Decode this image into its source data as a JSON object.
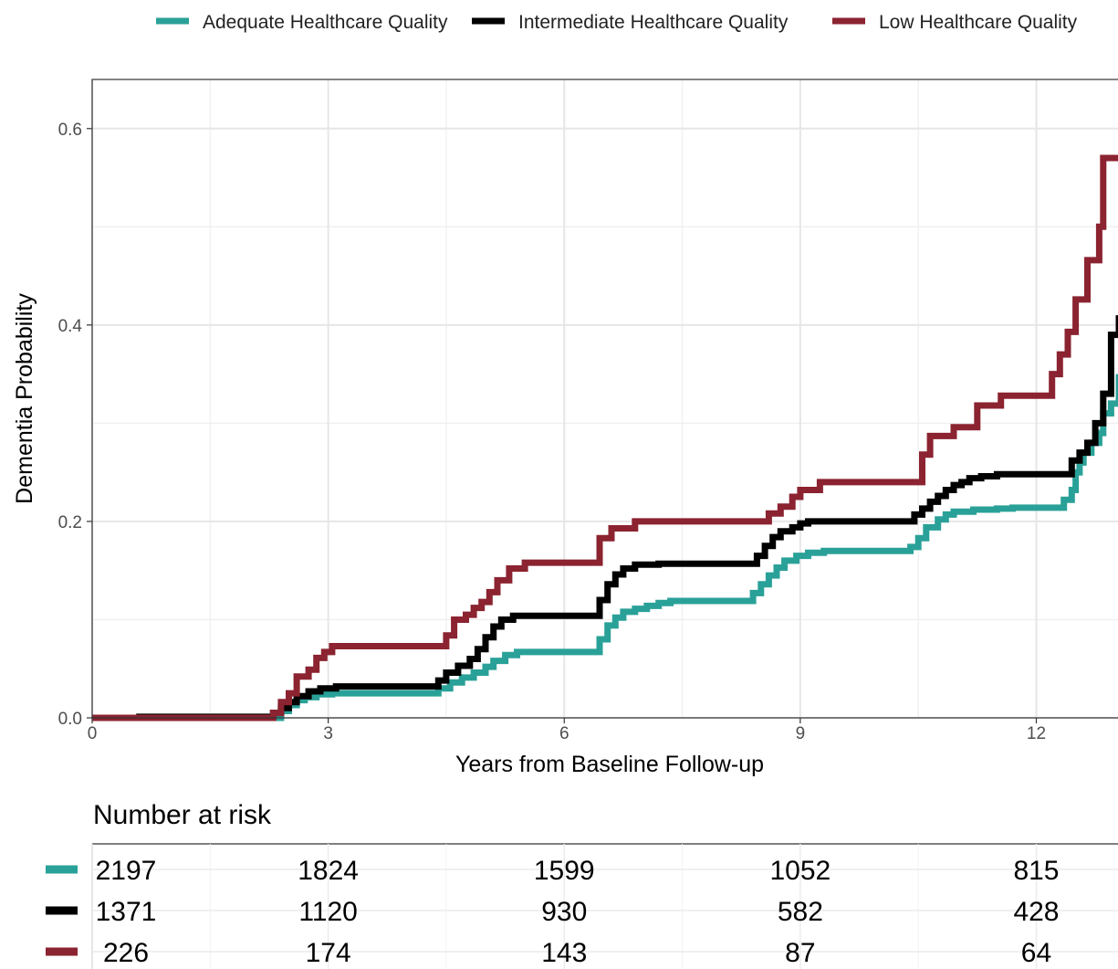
{
  "chart_data": {
    "type": "line",
    "step": true,
    "xlabel": "Years from Baseline Follow-up",
    "ylabel": "Dementia Probability",
    "xlim": [
      0,
      13.05
    ],
    "ylim": [
      0,
      0.65
    ],
    "x_ticks": [
      "0",
      "3",
      "6",
      "9",
      "12"
    ],
    "x_tick_values": [
      0,
      3,
      6,
      9,
      12
    ],
    "y_ticks": [
      "0.0",
      "0.2",
      "0.4",
      "0.6"
    ],
    "y_tick_values": [
      0,
      0.2,
      0.4,
      0.6
    ],
    "grid": true,
    "legend_position": "top",
    "series": [
      {
        "name": "Adequate Healthcare Quality",
        "color": "#2aa198",
        "points": [
          [
            0,
            0
          ],
          [
            0.6,
            0
          ],
          [
            2.25,
            0
          ],
          [
            2.4,
            0.007
          ],
          [
            2.5,
            0.013
          ],
          [
            2.6,
            0.018
          ],
          [
            2.7,
            0.021
          ],
          [
            2.85,
            0.024
          ],
          [
            3.05,
            0.025
          ],
          [
            4.3,
            0.025
          ],
          [
            4.4,
            0.03
          ],
          [
            4.55,
            0.036
          ],
          [
            4.7,
            0.041
          ],
          [
            4.85,
            0.046
          ],
          [
            5.0,
            0.052
          ],
          [
            5.1,
            0.058
          ],
          [
            5.25,
            0.064
          ],
          [
            5.4,
            0.067
          ],
          [
            6.4,
            0.067
          ],
          [
            6.45,
            0.08
          ],
          [
            6.55,
            0.094
          ],
          [
            6.65,
            0.102
          ],
          [
            6.75,
            0.108
          ],
          [
            6.9,
            0.111
          ],
          [
            7.05,
            0.114
          ],
          [
            7.2,
            0.117
          ],
          [
            7.35,
            0.119
          ],
          [
            8.35,
            0.119
          ],
          [
            8.4,
            0.127
          ],
          [
            8.5,
            0.136
          ],
          [
            8.6,
            0.145
          ],
          [
            8.7,
            0.153
          ],
          [
            8.8,
            0.16
          ],
          [
            8.95,
            0.165
          ],
          [
            9.1,
            0.168
          ],
          [
            9.3,
            0.17
          ],
          [
            10.3,
            0.17
          ],
          [
            10.4,
            0.174
          ],
          [
            10.5,
            0.183
          ],
          [
            10.6,
            0.194
          ],
          [
            10.75,
            0.202
          ],
          [
            10.85,
            0.207
          ],
          [
            10.95,
            0.21
          ],
          [
            11.2,
            0.212
          ],
          [
            11.5,
            0.213
          ],
          [
            11.7,
            0.214
          ],
          [
            12.3,
            0.214
          ],
          [
            12.35,
            0.222
          ],
          [
            12.45,
            0.232
          ],
          [
            12.5,
            0.25
          ],
          [
            12.55,
            0.26
          ],
          [
            12.6,
            0.27
          ],
          [
            12.7,
            0.28
          ],
          [
            12.8,
            0.29
          ],
          [
            12.85,
            0.31
          ],
          [
            12.95,
            0.32
          ],
          [
            13.05,
            0.35
          ]
        ]
      },
      {
        "name": "Intermediate Healthcare Quality",
        "color": "#000000",
        "points": [
          [
            0,
            0
          ],
          [
            0.6,
            0.001
          ],
          [
            2.25,
            0.001
          ],
          [
            2.3,
            0.005
          ],
          [
            2.4,
            0.01
          ],
          [
            2.5,
            0.016
          ],
          [
            2.6,
            0.022
          ],
          [
            2.75,
            0.027
          ],
          [
            2.9,
            0.03
          ],
          [
            3.1,
            0.032
          ],
          [
            4.3,
            0.032
          ],
          [
            4.4,
            0.038
          ],
          [
            4.5,
            0.046
          ],
          [
            4.65,
            0.053
          ],
          [
            4.8,
            0.06
          ],
          [
            4.9,
            0.07
          ],
          [
            5.0,
            0.082
          ],
          [
            5.1,
            0.093
          ],
          [
            5.2,
            0.1
          ],
          [
            5.35,
            0.104
          ],
          [
            6.4,
            0.104
          ],
          [
            6.45,
            0.12
          ],
          [
            6.55,
            0.136
          ],
          [
            6.65,
            0.146
          ],
          [
            6.75,
            0.152
          ],
          [
            6.9,
            0.156
          ],
          [
            7.2,
            0.157
          ],
          [
            8.35,
            0.157
          ],
          [
            8.45,
            0.165
          ],
          [
            8.55,
            0.175
          ],
          [
            8.65,
            0.184
          ],
          [
            8.75,
            0.19
          ],
          [
            8.9,
            0.194
          ],
          [
            9.0,
            0.198
          ],
          [
            9.1,
            0.2
          ],
          [
            10.35,
            0.2
          ],
          [
            10.45,
            0.207
          ],
          [
            10.55,
            0.213
          ],
          [
            10.65,
            0.22
          ],
          [
            10.75,
            0.226
          ],
          [
            10.85,
            0.232
          ],
          [
            10.95,
            0.237
          ],
          [
            11.05,
            0.24
          ],
          [
            11.15,
            0.244
          ],
          [
            11.3,
            0.246
          ],
          [
            11.5,
            0.248
          ],
          [
            12.35,
            0.248
          ],
          [
            12.45,
            0.262
          ],
          [
            12.55,
            0.27
          ],
          [
            12.65,
            0.28
          ],
          [
            12.75,
            0.3
          ],
          [
            12.85,
            0.33
          ],
          [
            12.95,
            0.39
          ],
          [
            13.05,
            0.41
          ]
        ]
      },
      {
        "name": "Low Healthcare Quality",
        "color": "#8b2330",
        "points": [
          [
            0,
            0
          ],
          [
            0.6,
            0
          ],
          [
            2.25,
            0
          ],
          [
            2.3,
            0.005
          ],
          [
            2.4,
            0.016
          ],
          [
            2.5,
            0.025
          ],
          [
            2.6,
            0.042
          ],
          [
            2.75,
            0.049
          ],
          [
            2.85,
            0.061
          ],
          [
            2.95,
            0.067
          ],
          [
            3.05,
            0.073
          ],
          [
            4.4,
            0.073
          ],
          [
            4.5,
            0.084
          ],
          [
            4.6,
            0.1
          ],
          [
            4.75,
            0.105
          ],
          [
            4.85,
            0.112
          ],
          [
            4.95,
            0.118
          ],
          [
            5.05,
            0.128
          ],
          [
            5.15,
            0.14
          ],
          [
            5.3,
            0.152
          ],
          [
            5.5,
            0.158
          ],
          [
            6.4,
            0.158
          ],
          [
            6.45,
            0.183
          ],
          [
            6.6,
            0.193
          ],
          [
            6.9,
            0.2
          ],
          [
            8.5,
            0.2
          ],
          [
            8.6,
            0.208
          ],
          [
            8.75,
            0.215
          ],
          [
            8.9,
            0.225
          ],
          [
            9.0,
            0.232
          ],
          [
            9.25,
            0.24
          ],
          [
            10.45,
            0.24
          ],
          [
            10.55,
            0.268
          ],
          [
            10.65,
            0.287
          ],
          [
            10.95,
            0.296
          ],
          [
            11.25,
            0.318
          ],
          [
            11.55,
            0.328
          ],
          [
            12.1,
            0.328
          ],
          [
            12.2,
            0.35
          ],
          [
            12.3,
            0.37
          ],
          [
            12.4,
            0.393
          ],
          [
            12.5,
            0.426
          ],
          [
            12.65,
            0.466
          ],
          [
            12.8,
            0.5
          ],
          [
            12.85,
            0.57
          ],
          [
            13.05,
            0.57
          ]
        ]
      }
    ]
  },
  "risk_table": {
    "title": "Number at risk",
    "rows": [
      {
        "color": "#2aa198",
        "values": [
          "2197",
          "1824",
          "1599",
          "1052",
          "815"
        ]
      },
      {
        "color": "#000000",
        "values": [
          "1371",
          "1120",
          "930",
          "582",
          "428"
        ]
      },
      {
        "color": "#8b2330",
        "values": [
          "226",
          "174",
          "143",
          "87",
          "64"
        ]
      }
    ]
  }
}
